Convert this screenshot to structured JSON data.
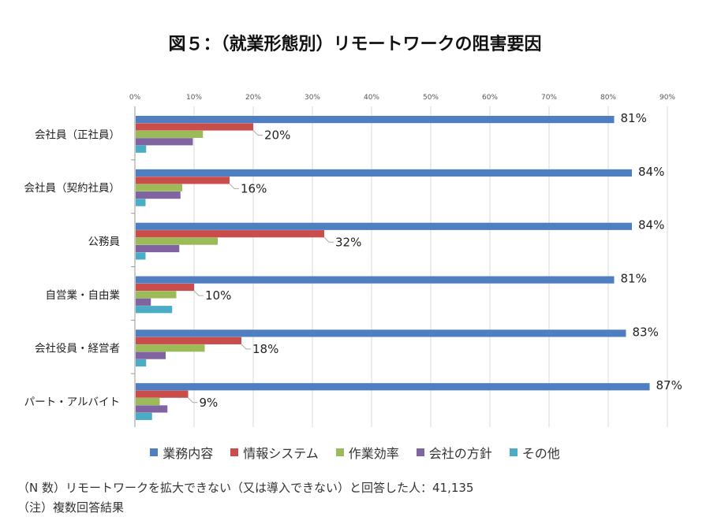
{
  "title": "図５：（就業形態別）リモートワークの阻害要因",
  "chart_data": {
    "type": "bar",
    "orientation": "horizontal",
    "title": "図５：（就業形態別）リモートワークの阻害要因",
    "categories": [
      "会社員（正社員）",
      "会社員（契約社員）",
      "公務員",
      "自営業・自由業",
      "会社役員・経営者",
      "パート・アルバイト"
    ],
    "series": [
      {
        "name": "業務内容",
        "color": "#4F7FC1",
        "values": [
          81,
          84,
          84,
          81,
          83,
          87
        ]
      },
      {
        "name": "情報システム",
        "color": "#C94E4B",
        "values": [
          20,
          16,
          32,
          10,
          18,
          9
        ]
      },
      {
        "name": "作業効率",
        "color": "#9BBB59",
        "values": [
          11.5,
          8,
          14,
          7,
          11.8,
          4.2
        ]
      },
      {
        "name": "会社の方針",
        "color": "#8064A2",
        "values": [
          9.8,
          7.7,
          7.5,
          2.7,
          5.2,
          5.5
        ]
      },
      {
        "name": "その他",
        "color": "#4BACC6",
        "values": [
          1.9,
          1.8,
          1.8,
          6.3,
          1.9,
          2.9
        ]
      }
    ],
    "data_labels": {
      "業務内容": [
        "81%",
        "84%",
        "84%",
        "81%",
        "83%",
        "87%"
      ],
      "情報システム": [
        "20%",
        "16%",
        "32%",
        "10%",
        "18%",
        "9%"
      ]
    },
    "xlim": [
      0,
      90
    ],
    "xticks": [
      "0%",
      "10%",
      "20%",
      "30%",
      "40%",
      "50%",
      "60%",
      "70%",
      "80%",
      "90%"
    ],
    "grid": true,
    "legend": "bottom"
  },
  "notes": {
    "n": "（N 数）リモートワークを拡大できない（又は導入できない）と回答した人：41,135",
    "caution": "（注）複数回答結果"
  }
}
